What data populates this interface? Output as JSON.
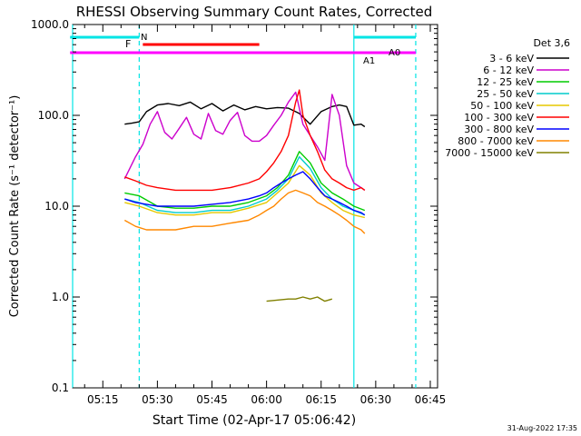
{
  "chart_data": {
    "type": "line",
    "title": "RHESSI Observing Summary Count Rates, Corrected",
    "xlabel": "Start Time (02-Apr-17 05:06:42)",
    "ylabel": "Corrected Count Rate (s⁻¹ detector⁻¹)",
    "y_scale": "log",
    "ylim": [
      0.1,
      1000.0
    ],
    "y_ticks": [
      "1000.0",
      "100.0",
      "10.0",
      "1.0",
      "0.1"
    ],
    "x_range_minutes": [
      "05:06:42",
      "06:47:00"
    ],
    "x_ticks": [
      "05:15",
      "05:30",
      "05:45",
      "06:00",
      "06:15",
      "06:30",
      "06:45"
    ],
    "legend_title": "Det 3,6",
    "legend_placement": "right",
    "timestamp": "31-Aug-2022 17:35",
    "flags": {
      "N_label": "N",
      "F_label": "F",
      "A0_label": "A0",
      "A1_label": "A1",
      "night_bars": [
        [
          "05:06",
          "05:25"
        ],
        [
          "06:24",
          "06:41"
        ]
      ],
      "flare_bar": [
        "05:26",
        "05:58"
      ],
      "attenuator_line": [
        "05:06",
        "06:41"
      ]
    },
    "vertical_lines": {
      "solid": [
        "05:06:42",
        "06:24:00"
      ],
      "dashed": [
        "05:25:00",
        "06:41:00"
      ]
    },
    "series": [
      {
        "name": "3 - 6 keV",
        "color": "#000000",
        "x": [
          "05:21",
          "05:23",
          "05:25",
          "05:27",
          "05:30",
          "05:33",
          "05:36",
          "05:39",
          "05:42",
          "05:45",
          "05:48",
          "05:51",
          "05:54",
          "05:57",
          "06:00",
          "06:03",
          "06:06",
          "06:09",
          "06:12",
          "06:15",
          "06:18",
          "06:20",
          "06:22",
          "06:24",
          "06:26",
          "06:27"
        ],
        "y": [
          80,
          82,
          85,
          110,
          130,
          135,
          128,
          140,
          118,
          135,
          112,
          130,
          115,
          125,
          118,
          122,
          120,
          105,
          80,
          110,
          125,
          130,
          125,
          78,
          80,
          75
        ]
      },
      {
        "name": "6 - 12 keV",
        "color": "#cc00cc",
        "x": [
          "05:21",
          "05:24",
          "05:26",
          "05:28",
          "05:30",
          "05:32",
          "05:34",
          "05:36",
          "05:38",
          "05:40",
          "05:42",
          "05:44",
          "05:46",
          "05:48",
          "05:50",
          "05:52",
          "05:54",
          "05:56",
          "05:58",
          "06:00",
          "06:02",
          "06:04",
          "06:06",
          "06:08",
          "06:10",
          "06:12",
          "06:14",
          "06:16",
          "06:18",
          "06:20",
          "06:22",
          "06:24",
          "06:26",
          "06:27"
        ],
        "y": [
          20,
          35,
          48,
          80,
          110,
          65,
          55,
          72,
          95,
          62,
          55,
          105,
          68,
          62,
          88,
          108,
          60,
          52,
          52,
          60,
          78,
          100,
          140,
          180,
          80,
          60,
          45,
          32,
          170,
          100,
          28,
          18,
          16,
          15
        ]
      },
      {
        "name": "12 - 25 keV",
        "color": "#00cc00",
        "x": [
          "05:21",
          "05:25",
          "05:30",
          "05:35",
          "05:40",
          "05:45",
          "05:50",
          "05:55",
          "06:00",
          "06:03",
          "06:06",
          "06:09",
          "06:12",
          "06:15",
          "06:18",
          "06:21",
          "06:24",
          "06:27"
        ],
        "y": [
          14,
          13,
          10,
          9.5,
          9.5,
          10,
          10,
          11,
          13,
          16,
          22,
          40,
          30,
          18,
          14,
          12,
          10,
          9
        ]
      },
      {
        "name": "25 - 50 keV",
        "color": "#00cccc",
        "x": [
          "05:21",
          "05:25",
          "05:30",
          "05:35",
          "05:40",
          "05:45",
          "05:50",
          "05:55",
          "06:00",
          "06:03",
          "06:06",
          "06:09",
          "06:12",
          "06:15",
          "06:18",
          "06:21",
          "06:24",
          "06:27"
        ],
        "y": [
          12,
          11,
          9,
          8.5,
          8.5,
          9,
          9,
          10,
          12,
          15,
          20,
          35,
          26,
          16,
          12,
          10,
          9,
          8
        ]
      },
      {
        "name": "50 - 100 keV",
        "color": "#e6c800",
        "x": [
          "05:21",
          "05:25",
          "05:30",
          "05:35",
          "05:40",
          "05:45",
          "05:50",
          "05:55",
          "06:00",
          "06:03",
          "06:06",
          "06:09",
          "06:12",
          "06:15",
          "06:18",
          "06:21",
          "06:24",
          "06:27"
        ],
        "y": [
          11,
          10,
          8.5,
          8,
          8,
          8.5,
          8.5,
          9.5,
          11,
          14,
          18,
          28,
          22,
          14,
          11,
          9,
          8,
          7.5
        ]
      },
      {
        "name": "100 - 300 keV",
        "color": "#ff0000",
        "x": [
          "05:21",
          "05:24",
          "05:27",
          "05:30",
          "05:35",
          "05:40",
          "05:45",
          "05:50",
          "05:55",
          "05:58",
          "06:00",
          "06:02",
          "06:04",
          "06:06",
          "06:08",
          "06:09",
          "06:10",
          "06:12",
          "06:14",
          "06:16",
          "06:18",
          "06:20",
          "06:22",
          "06:24",
          "06:26",
          "06:27"
        ],
        "y": [
          21,
          19,
          17,
          16,
          15,
          15,
          15,
          16,
          18,
          20,
          24,
          30,
          40,
          60,
          140,
          190,
          100,
          60,
          40,
          25,
          20,
          18,
          16,
          15,
          16,
          15
        ]
      },
      {
        "name": "300 - 800 keV",
        "color": "#0000ff",
        "x": [
          "05:21",
          "05:24",
          "05:27",
          "05:30",
          "05:35",
          "05:40",
          "05:45",
          "05:50",
          "05:55",
          "05:58",
          "06:00",
          "06:02",
          "06:04",
          "06:06",
          "06:08",
          "06:10",
          "06:12",
          "06:14",
          "06:16",
          "06:18",
          "06:20",
          "06:22",
          "06:24",
          "06:26",
          "06:27"
        ],
        "y": [
          12,
          11,
          10.5,
          10,
          10,
          10,
          10.5,
          11,
          12,
          13,
          14,
          16,
          18,
          20,
          22,
          24,
          20,
          16,
          13,
          12,
          11,
          10,
          9,
          8.5,
          8
        ]
      },
      {
        "name": "800 - 7000 keV",
        "color": "#ff8800",
        "x": [
          "05:21",
          "05:24",
          "05:27",
          "05:30",
          "05:35",
          "05:40",
          "05:45",
          "05:50",
          "05:55",
          "05:58",
          "06:00",
          "06:02",
          "06:04",
          "06:06",
          "06:08",
          "06:10",
          "06:12",
          "06:14",
          "06:16",
          "06:18",
          "06:20",
          "06:22",
          "06:24",
          "06:26",
          "06:27"
        ],
        "y": [
          7,
          6,
          5.5,
          5.5,
          5.5,
          6,
          6,
          6.5,
          7,
          8,
          9,
          10,
          12,
          14,
          15,
          14,
          13,
          11,
          10,
          9,
          8,
          7,
          6,
          5.5,
          5
        ]
      },
      {
        "name": "7000 - 15000 keV",
        "color": "#808000",
        "x": [
          "06:00",
          "06:06",
          "06:08",
          "06:10",
          "06:12",
          "06:14",
          "06:16",
          "06:18"
        ],
        "y": [
          0.9,
          0.95,
          0.95,
          1.0,
          0.95,
          1.0,
          0.9,
          0.95
        ]
      }
    ]
  }
}
